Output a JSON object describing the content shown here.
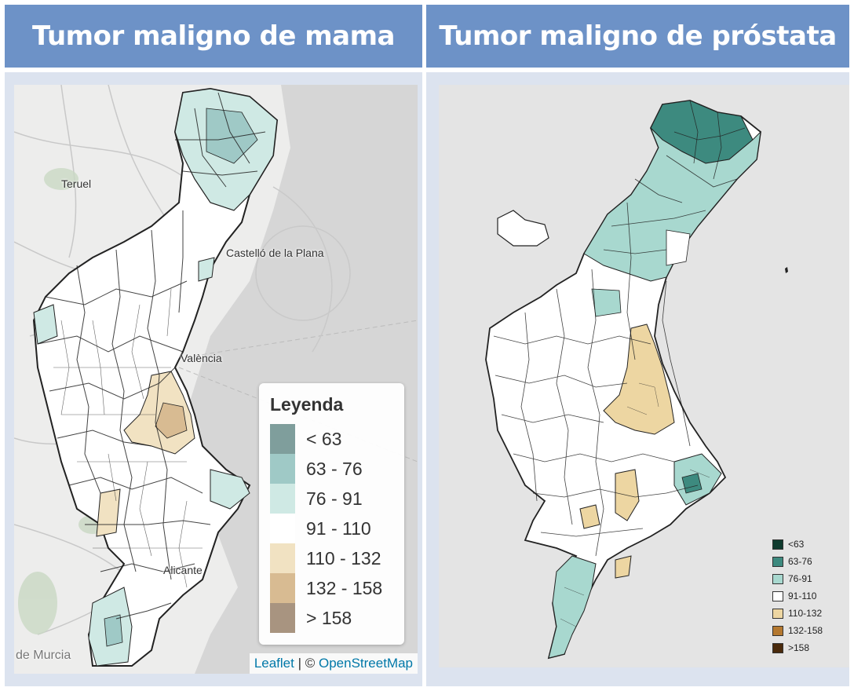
{
  "headers": {
    "left": "Tumor maligno de mama",
    "right": "Tumor maligno de próstata"
  },
  "left_map": {
    "cities": {
      "teruel": "Teruel",
      "castello": "Castelló de la Plana",
      "valencia": "València",
      "alicante": "Alicante",
      "murcia": "de Murcia"
    },
    "legend": {
      "title": "Leyenda",
      "items": [
        {
          "label": "< 63",
          "color": "#7f9e9c"
        },
        {
          "label": "63 - 76",
          "color": "#9fc9c6"
        },
        {
          "label": "76 - 91",
          "color": "#cfe9e4"
        },
        {
          "label": "91 - 110",
          "color": "#ffffff"
        },
        {
          "label": "110 - 132",
          "color": "#f1e2c2"
        },
        {
          "label": "132 - 158",
          "color": "#d8bb92"
        },
        {
          "label": "> 158",
          "color": "#a89480"
        }
      ]
    },
    "attribution": {
      "leaflet": "Leaflet",
      "separator": " | © ",
      "osm": "OpenStreetMap"
    }
  },
  "right_map": {
    "legend": {
      "items": [
        {
          "label": "<63",
          "color": "#0f3b2e"
        },
        {
          "label": "63-76",
          "color": "#3d8a7f"
        },
        {
          "label": "76-91",
          "color": "#a8d8cf"
        },
        {
          "label": "91-110",
          "color": "#ffffff"
        },
        {
          "label": "110-132",
          "color": "#edd6a2"
        },
        {
          "label": "132-158",
          "color": "#b4782f"
        },
        {
          "label": ">158",
          "color": "#4a2a0c"
        }
      ]
    }
  }
}
